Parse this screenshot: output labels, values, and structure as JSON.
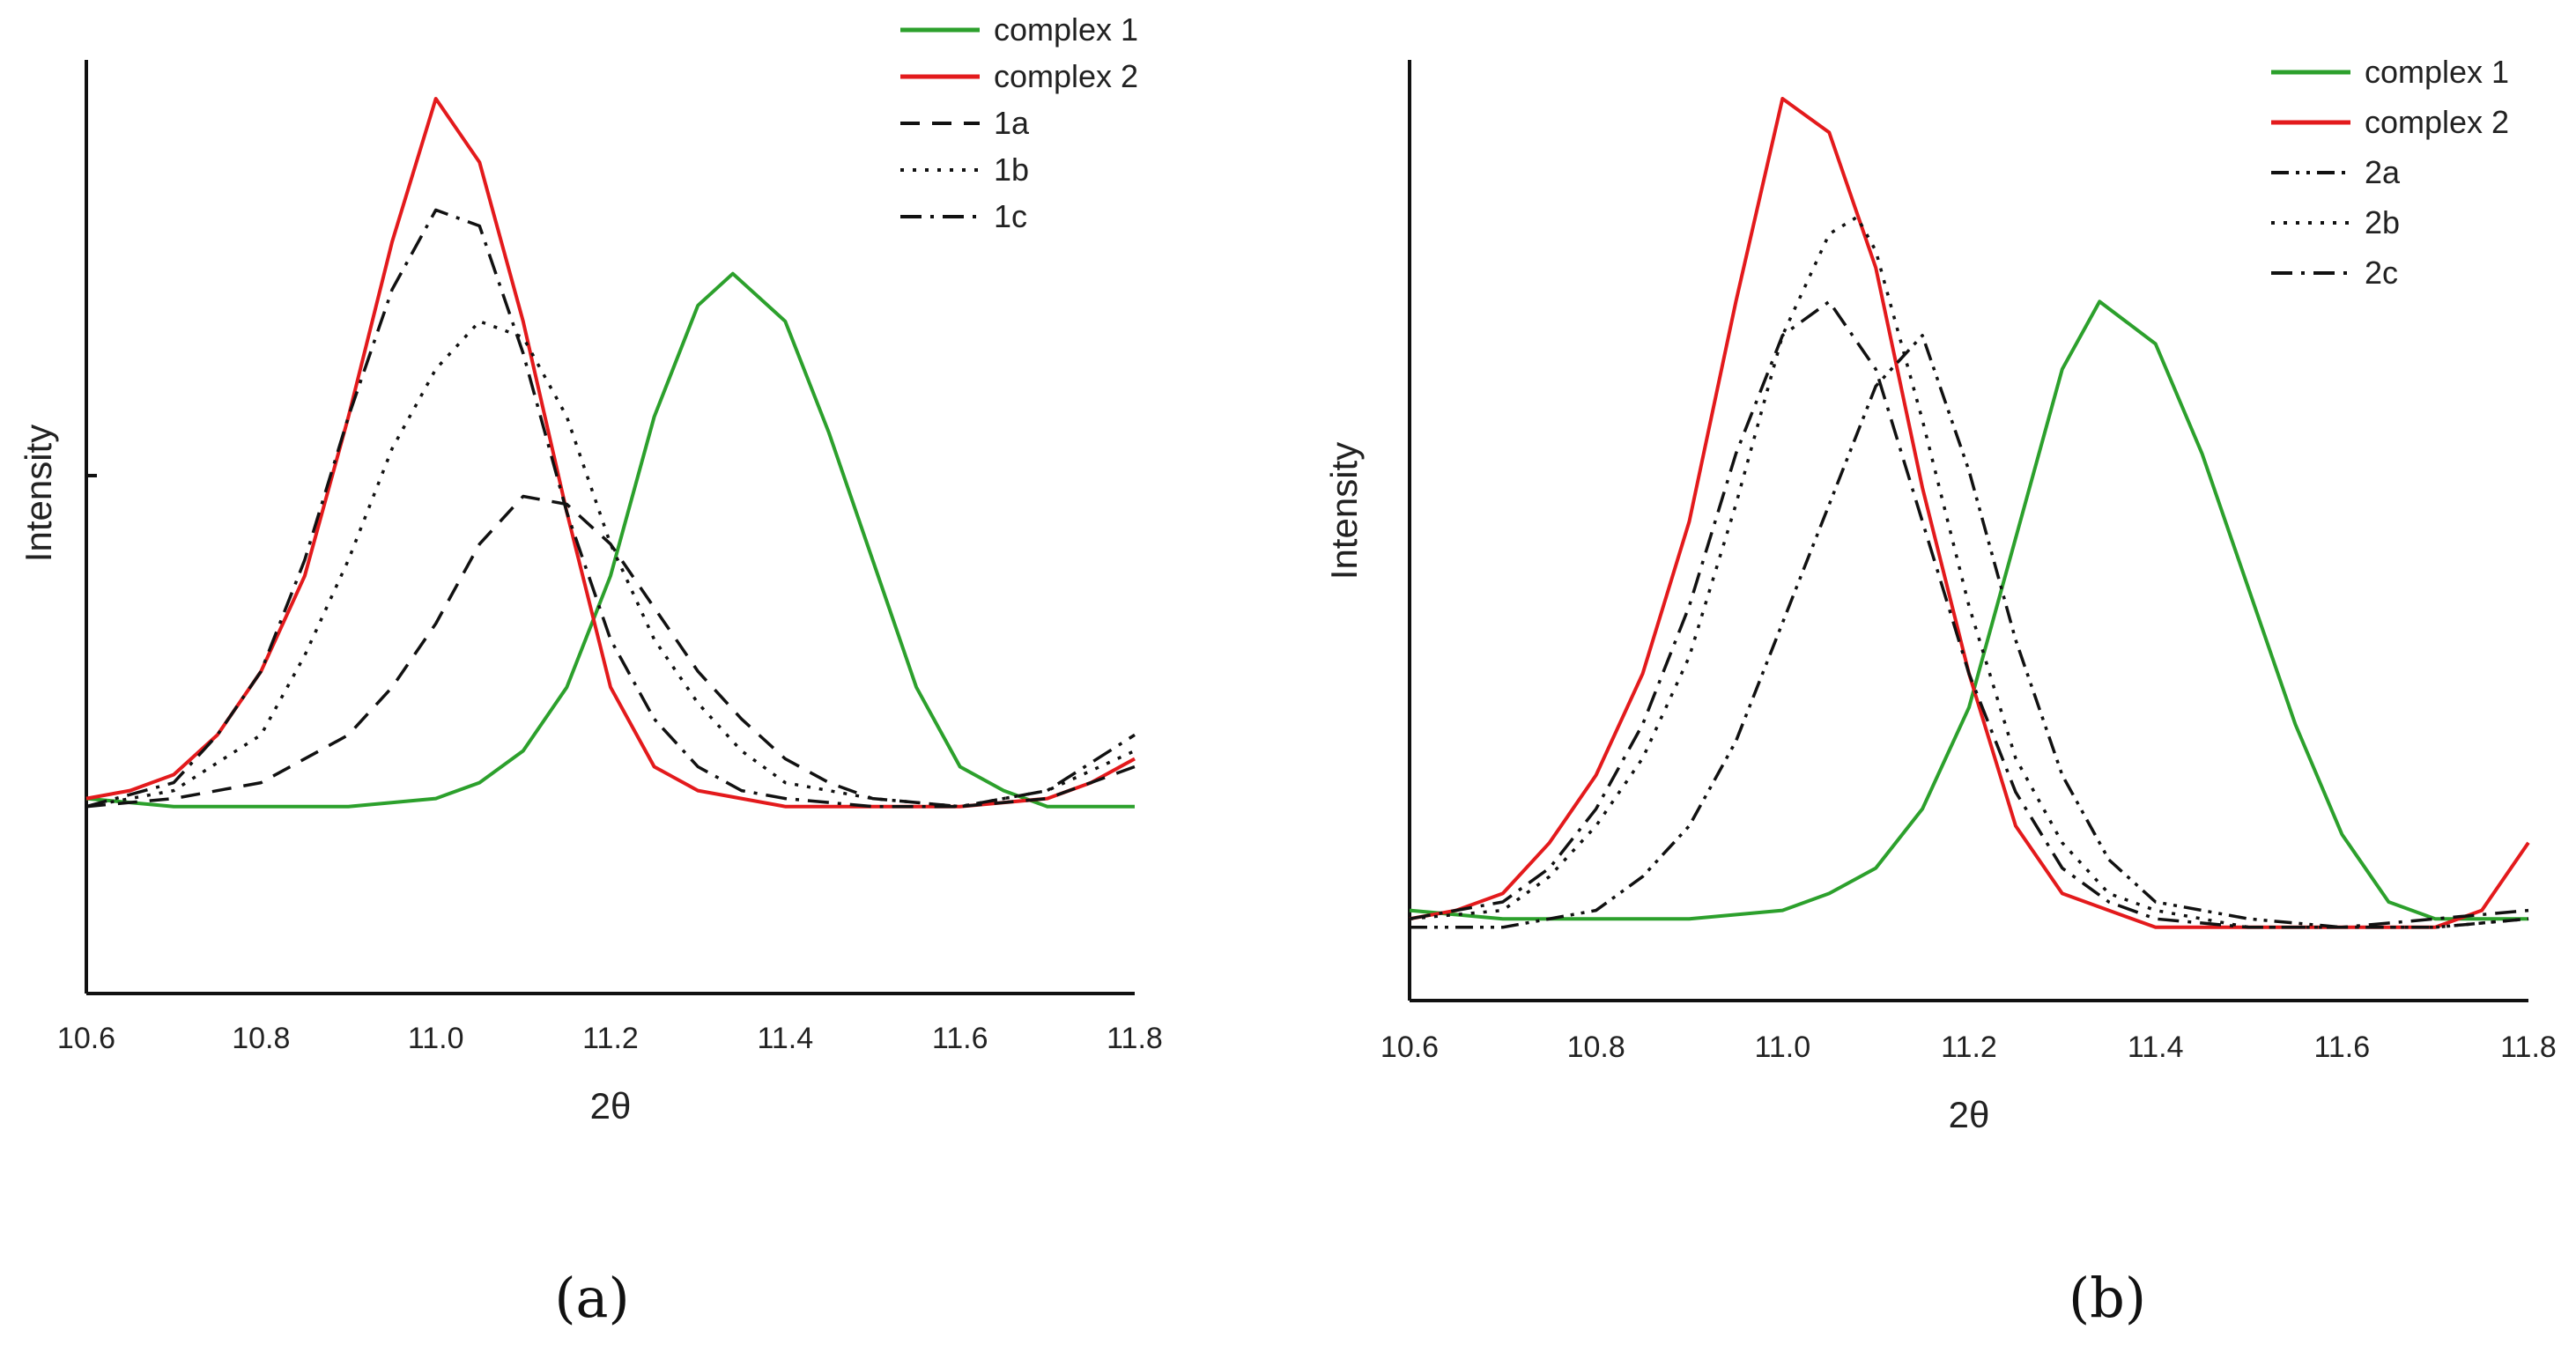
{
  "chart_data": [
    {
      "type": "line",
      "panel_label": "(a)",
      "xlabel": "2θ",
      "ylabel": "Intensity",
      "xlim": [
        10.6,
        11.8
      ],
      "ylim": [
        0,
        100
      ],
      "xticks": [
        "10.6",
        "10.8",
        "11.0",
        "11.2",
        "11.4",
        "11.6",
        "11.8"
      ],
      "series": [
        {
          "name": "complex 1",
          "color": "#2ca02c",
          "style": "solid",
          "x": [
            10.6,
            10.7,
            10.8,
            10.9,
            11.0,
            11.05,
            11.1,
            11.15,
            11.2,
            11.25,
            11.3,
            11.34,
            11.4,
            11.45,
            11.5,
            11.55,
            11.6,
            11.65,
            11.7,
            11.8
          ],
          "y": [
            12,
            11,
            11,
            11,
            12,
            14,
            18,
            26,
            40,
            60,
            74,
            78,
            72,
            58,
            42,
            26,
            16,
            13,
            11,
            11
          ]
        },
        {
          "name": "complex 2",
          "color": "#e31a1c",
          "style": "solid",
          "x": [
            10.6,
            10.65,
            10.7,
            10.75,
            10.8,
            10.85,
            10.9,
            10.95,
            11.0,
            11.05,
            11.1,
            11.15,
            11.2,
            11.25,
            11.3,
            11.4,
            11.5,
            11.6,
            11.7,
            11.75,
            11.8
          ],
          "y": [
            12,
            13,
            15,
            20,
            28,
            40,
            60,
            82,
            100,
            92,
            72,
            48,
            26,
            16,
            13,
            11,
            11,
            11,
            12,
            14,
            17
          ]
        },
        {
          "name": "1a",
          "color": "#111111",
          "style": "dashed",
          "x": [
            10.6,
            10.7,
            10.8,
            10.9,
            10.95,
            11.0,
            11.05,
            11.1,
            11.15,
            11.2,
            11.25,
            11.3,
            11.35,
            11.4,
            11.45,
            11.5,
            11.6,
            11.7,
            11.8
          ],
          "y": [
            11,
            12,
            14,
            20,
            26,
            34,
            44,
            50,
            49,
            44,
            36,
            28,
            22,
            17,
            14,
            12,
            11,
            12,
            16
          ]
        },
        {
          "name": "1b",
          "color": "#111111",
          "style": "dotted",
          "x": [
            10.6,
            10.7,
            10.8,
            10.85,
            10.9,
            10.95,
            11.0,
            11.05,
            11.1,
            11.15,
            11.2,
            11.25,
            11.3,
            11.35,
            11.4,
            11.5,
            11.6,
            11.7,
            11.8
          ],
          "y": [
            11,
            13,
            20,
            30,
            42,
            56,
            66,
            72,
            70,
            60,
            44,
            32,
            24,
            18,
            14,
            12,
            11,
            13,
            18
          ]
        },
        {
          "name": "1c",
          "color": "#111111",
          "style": "dashdot",
          "x": [
            10.6,
            10.7,
            10.75,
            10.8,
            10.85,
            10.9,
            10.95,
            11.0,
            11.05,
            11.1,
            11.15,
            11.2,
            11.25,
            11.3,
            11.35,
            11.4,
            11.5,
            11.6,
            11.7,
            11.8
          ],
          "y": [
            11,
            14,
            20,
            28,
            42,
            60,
            76,
            86,
            84,
            68,
            48,
            32,
            22,
            16,
            13,
            12,
            11,
            11,
            13,
            20
          ]
        }
      ]
    },
    {
      "type": "line",
      "panel_label": "(b)",
      "xlabel": "2θ",
      "ylabel": "Intensity",
      "xlim": [
        10.6,
        11.8
      ],
      "ylim": [
        0,
        100
      ],
      "xticks": [
        "10.6",
        "10.8",
        "11.0",
        "11.2",
        "11.4",
        "11.6",
        "11.8"
      ],
      "series": [
        {
          "name": "complex 1",
          "color": "#2ca02c",
          "style": "solid",
          "x": [
            10.6,
            10.7,
            10.8,
            10.9,
            11.0,
            11.05,
            11.1,
            11.15,
            11.2,
            11.25,
            11.3,
            11.34,
            11.4,
            11.45,
            11.5,
            11.55,
            11.6,
            11.65,
            11.7,
            11.8
          ],
          "y": [
            4,
            3,
            3,
            3,
            4,
            6,
            9,
            16,
            28,
            48,
            68,
            76,
            71,
            58,
            42,
            26,
            13,
            5,
            3,
            3
          ]
        },
        {
          "name": "complex 2",
          "color": "#e31a1c",
          "style": "solid",
          "x": [
            10.6,
            10.65,
            10.7,
            10.75,
            10.8,
            10.85,
            10.9,
            10.95,
            11.0,
            11.05,
            11.1,
            11.15,
            11.2,
            11.25,
            11.3,
            11.4,
            11.5,
            11.6,
            11.7,
            11.75,
            11.8
          ],
          "y": [
            3,
            4,
            6,
            12,
            20,
            32,
            50,
            76,
            100,
            96,
            80,
            54,
            32,
            14,
            6,
            2,
            2,
            2,
            2,
            4,
            12
          ]
        },
        {
          "name": "2a",
          "color": "#111111",
          "style": "dashdotdot",
          "x": [
            10.6,
            10.7,
            10.8,
            10.85,
            10.9,
            10.95,
            11.0,
            11.05,
            11.1,
            11.15,
            11.2,
            11.25,
            11.3,
            11.35,
            11.4,
            11.5,
            11.6,
            11.7,
            11.8
          ],
          "y": [
            2,
            2,
            4,
            8,
            14,
            24,
            38,
            52,
            66,
            72,
            56,
            36,
            20,
            10,
            5,
            3,
            2,
            2,
            3
          ]
        },
        {
          "name": "2b",
          "color": "#111111",
          "style": "dotted",
          "x": [
            10.6,
            10.7,
            10.75,
            10.8,
            10.85,
            10.9,
            10.95,
            11.0,
            11.05,
            11.08,
            11.1,
            11.15,
            11.2,
            11.25,
            11.3,
            11.35,
            11.4,
            11.5,
            11.6,
            11.7,
            11.8
          ],
          "y": [
            3,
            4,
            8,
            14,
            22,
            34,
            52,
            72,
            84,
            86,
            82,
            62,
            40,
            22,
            12,
            6,
            4,
            2,
            2,
            2,
            3
          ]
        },
        {
          "name": "2c",
          "color": "#111111",
          "style": "dashdot",
          "x": [
            10.6,
            10.7,
            10.75,
            10.8,
            10.85,
            10.9,
            10.95,
            11.0,
            11.05,
            11.1,
            11.15,
            11.2,
            11.25,
            11.3,
            11.35,
            11.4,
            11.5,
            11.6,
            11.7,
            11.8
          ],
          "y": [
            3,
            5,
            9,
            16,
            26,
            40,
            58,
            72,
            76,
            68,
            50,
            32,
            18,
            9,
            5,
            3,
            2,
            2,
            3,
            4
          ]
        }
      ]
    }
  ]
}
